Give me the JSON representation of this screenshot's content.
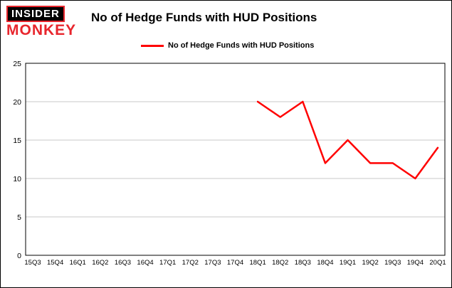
{
  "header": {
    "logo_line1": "INSIDER",
    "logo_line2": "MONKEY",
    "title": "No of Hedge Funds with HUD Positions"
  },
  "legend": {
    "label": "No of Hedge Funds with HUD Positions",
    "color": "#ff0000"
  },
  "chart_data": {
    "type": "line",
    "title": "No of Hedge Funds with HUD Positions",
    "categories": [
      "15Q3",
      "15Q4",
      "16Q1",
      "16Q2",
      "16Q3",
      "16Q4",
      "17Q1",
      "17Q2",
      "17Q3",
      "17Q4",
      "18Q1",
      "18Q2",
      "18Q3",
      "18Q4",
      "19Q1",
      "19Q2",
      "19Q3",
      "19Q4",
      "20Q1"
    ],
    "series": [
      {
        "name": "No of Hedge Funds with HUD Positions",
        "color": "#ff0000",
        "values": [
          null,
          null,
          null,
          null,
          null,
          null,
          null,
          null,
          null,
          null,
          20,
          18,
          20,
          12,
          15,
          12,
          12,
          10,
          14
        ]
      }
    ],
    "xlabel": "",
    "ylabel": "",
    "ylim": [
      0,
      25
    ],
    "yticks": [
      0,
      5,
      10,
      15,
      20,
      25
    ],
    "grid": true,
    "legend_position": "top",
    "gridline_color": "#c8c8c8",
    "axis_color": "#000000"
  }
}
